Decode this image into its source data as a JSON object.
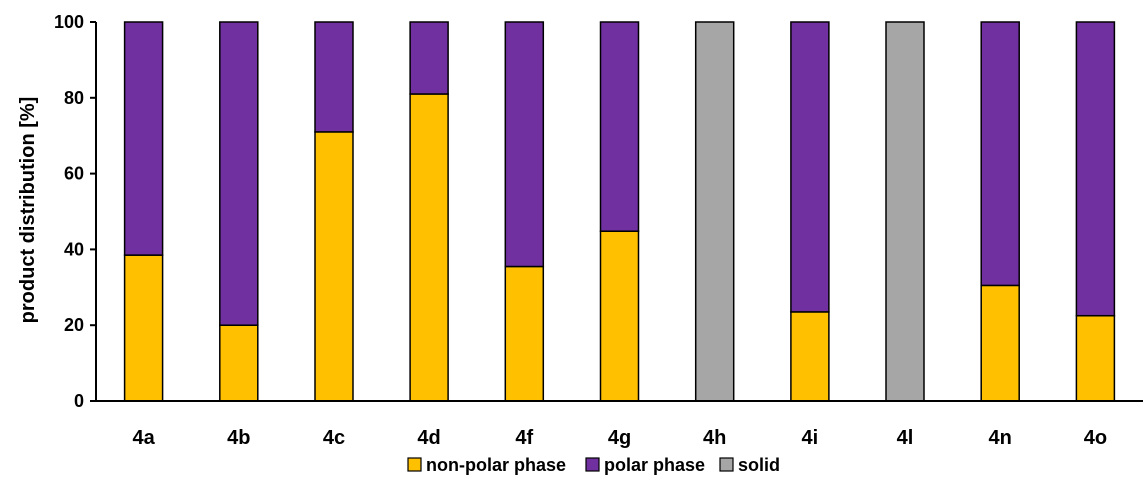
{
  "chart_data": {
    "type": "bar",
    "stacked": true,
    "categories": [
      "4a",
      "4b",
      "4c",
      "4d",
      "4f",
      "4g",
      "4h",
      "4i",
      "4l",
      "4n",
      "4o"
    ],
    "series": [
      {
        "name": "non-polar phase",
        "color": "#FFC000",
        "values": [
          38.5,
          20,
          71,
          81,
          35.5,
          44.8,
          0,
          23.5,
          0,
          30.5,
          22.5
        ]
      },
      {
        "name": "polar phase",
        "color": "#7030A0",
        "values": [
          61.5,
          80,
          29,
          19,
          64.5,
          55.2,
          0,
          76.5,
          0,
          69.5,
          77.5
        ]
      },
      {
        "name": "solid",
        "color": "#A6A6A6",
        "values": [
          0,
          0,
          0,
          0,
          0,
          0,
          100,
          0,
          100,
          0,
          0
        ]
      }
    ],
    "ylabel": "product distribution [%]",
    "xlabel": "",
    "ylim": [
      0,
      100
    ],
    "yticks": [
      0,
      20,
      40,
      60,
      80,
      100
    ],
    "grid": false,
    "legend_position": "bottom"
  }
}
